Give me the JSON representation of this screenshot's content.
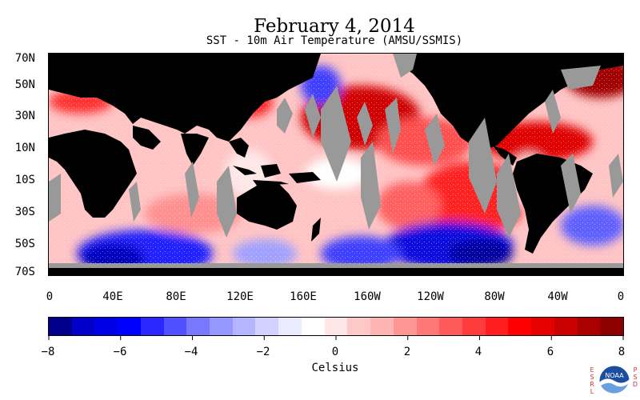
{
  "header": {
    "title": "February 4, 2014",
    "subtitle": "SST - 10m Air Temperature (AMSU/SSMIS)"
  },
  "map": {
    "lat_labels": [
      "70N",
      "50N",
      "30N",
      "10N",
      "10S",
      "30S",
      "50S",
      "70S"
    ],
    "lon_labels": [
      "0",
      "40E",
      "80E",
      "120E",
      "160E",
      "160W",
      "120W",
      "80W",
      "40W",
      "0"
    ],
    "colors": {
      "land": "#000000",
      "missing": "#999999",
      "ocean_base": "#ffc8c8"
    }
  },
  "colorbar": {
    "tick_labels": [
      "−8",
      "−6",
      "−4",
      "−2",
      "0",
      "2",
      "4",
      "6",
      "8"
    ],
    "units": "Celsius",
    "colors": [
      "#00008c",
      "#0000c8",
      "#0000e6",
      "#0000ff",
      "#2828ff",
      "#5050ff",
      "#7878ff",
      "#9696ff",
      "#b4b4ff",
      "#d2d2ff",
      "#ebebff",
      "#ffffff",
      "#ffe6e6",
      "#ffc8c8",
      "#ffb4b4",
      "#ff9696",
      "#ff7878",
      "#ff5a5a",
      "#ff3c3c",
      "#ff1e1e",
      "#ff0000",
      "#e60000",
      "#c80000",
      "#aa0000",
      "#8c0000"
    ]
  },
  "credits": {
    "esrl": "ESRL",
    "psd": "PSD",
    "logo_text": "NOAA"
  }
}
